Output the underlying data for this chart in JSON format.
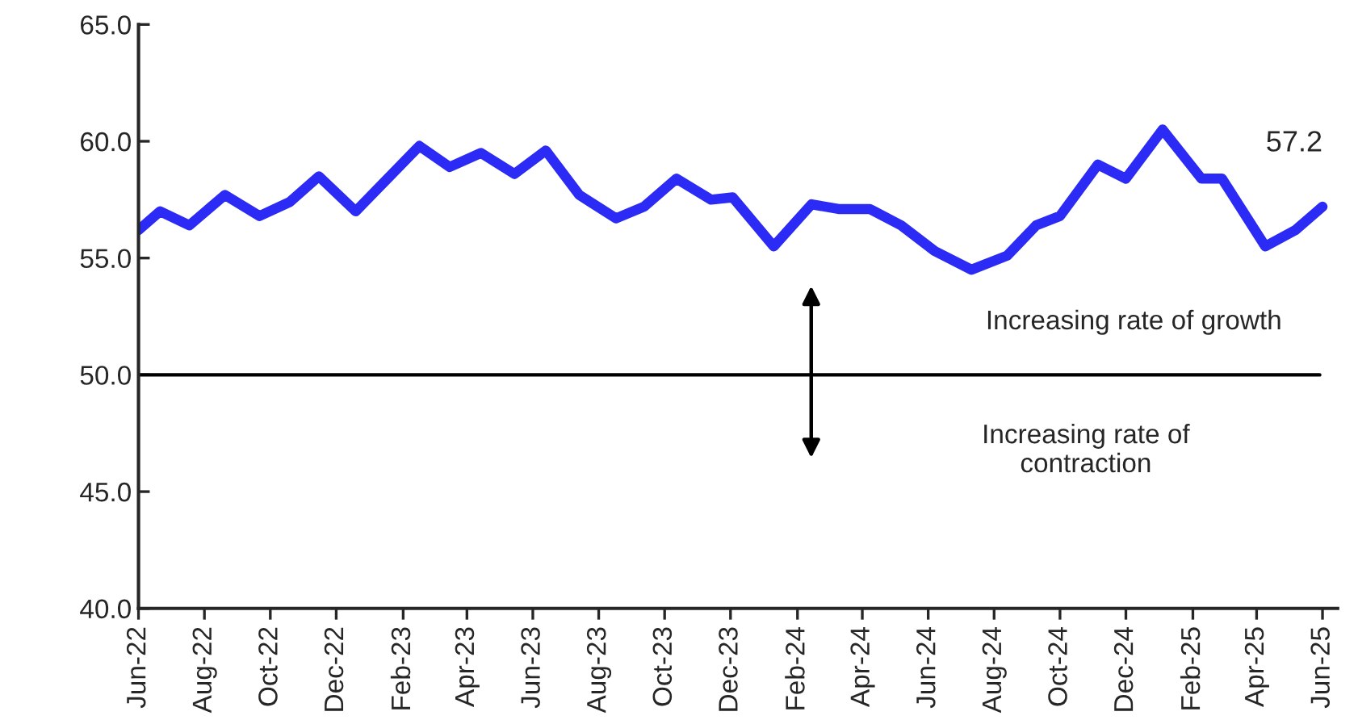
{
  "chart_data": {
    "type": "line",
    "x": [
      "2022-06-01",
      "2022-06-21",
      "2022-07-18",
      "2022-08-20",
      "2022-09-21",
      "2022-10-19",
      "2022-11-15",
      "2022-12-19",
      "2023-02-16",
      "2023-03-16",
      "2023-04-14",
      "2023-05-15",
      "2023-06-13",
      "2023-07-14",
      "2023-08-17",
      "2023-09-12",
      "2023-10-12",
      "2023-11-13",
      "2023-12-03",
      "2024-01-10",
      "2024-02-14",
      "2024-03-10",
      "2024-04-08",
      "2024-05-07",
      "2024-06-07",
      "2024-07-11",
      "2024-08-13",
      "2024-09-09",
      "2024-10-01",
      "2024-11-05",
      "2024-12-01",
      "2025-01-04",
      "2025-02-09",
      "2025-02-28",
      "2025-04-09",
      "2025-05-07",
      "2025-06-01"
    ],
    "series": [
      {
        "color": "#2b2bf5",
        "values": [
          56.2,
          57.0,
          56.4,
          57.7,
          56.8,
          57.4,
          58.5,
          57.0,
          59.8,
          58.9,
          59.5,
          58.6,
          59.6,
          57.7,
          56.7,
          57.2,
          58.4,
          57.5,
          57.6,
          55.5,
          57.3,
          57.1,
          57.1,
          56.4,
          55.3,
          54.5,
          55.1,
          56.4,
          56.8,
          59.0,
          58.4,
          60.5,
          58.4,
          58.4,
          55.5,
          56.2,
          57.2
        ]
      }
    ],
    "xlim": [
      "2022-06-01",
      "2025-06-15"
    ],
    "xticks": [
      {
        "value": "2022-06",
        "label": "Jun-22"
      },
      {
        "value": "2022-08",
        "label": "Aug-22"
      },
      {
        "value": "2022-10",
        "label": "Oct-22"
      },
      {
        "value": "2022-12",
        "label": "Dec-22"
      },
      {
        "value": "2023-02",
        "label": "Feb-23"
      },
      {
        "value": "2023-04",
        "label": "Apr-23"
      },
      {
        "value": "2023-06",
        "label": "Jun-23"
      },
      {
        "value": "2023-08",
        "label": "Aug-23"
      },
      {
        "value": "2023-10",
        "label": "Oct-23"
      },
      {
        "value": "2023-12",
        "label": "Dec-23"
      },
      {
        "value": "2024-02",
        "label": "Feb-24"
      },
      {
        "value": "2024-04",
        "label": "Apr-24"
      },
      {
        "value": "2024-06",
        "label": "Jun-24"
      },
      {
        "value": "2024-08",
        "label": "Aug-24"
      },
      {
        "value": "2024-10",
        "label": "Oct-24"
      },
      {
        "value": "2024-12",
        "label": "Dec-24"
      },
      {
        "value": "2025-02",
        "label": "Feb-25"
      },
      {
        "value": "2025-04",
        "label": "Apr-25"
      },
      {
        "value": "2025-06",
        "label": "Jun-25"
      }
    ],
    "ylim": [
      40,
      65
    ],
    "yticks": [
      {
        "value": 40,
        "label": "40.0"
      },
      {
        "value": 45,
        "label": "45.0"
      },
      {
        "value": 50,
        "label": "50.0"
      },
      {
        "value": 55,
        "label": "55.0"
      },
      {
        "value": 60,
        "label": "60.0"
      },
      {
        "value": 65,
        "label": "65.0"
      }
    ],
    "ref_lines": [
      {
        "axis": "y",
        "value": 50,
        "color": "#000000",
        "line_style": "solid"
      }
    ],
    "annotations": [
      {
        "text": "57.2",
        "x": "2025-06-01",
        "y": 57.2
      },
      "Increasing rate of growth",
      "Increasing rate of\ncontraction"
    ],
    "marker": "none",
    "line_style": "solid",
    "grid": false,
    "legend": false
  }
}
